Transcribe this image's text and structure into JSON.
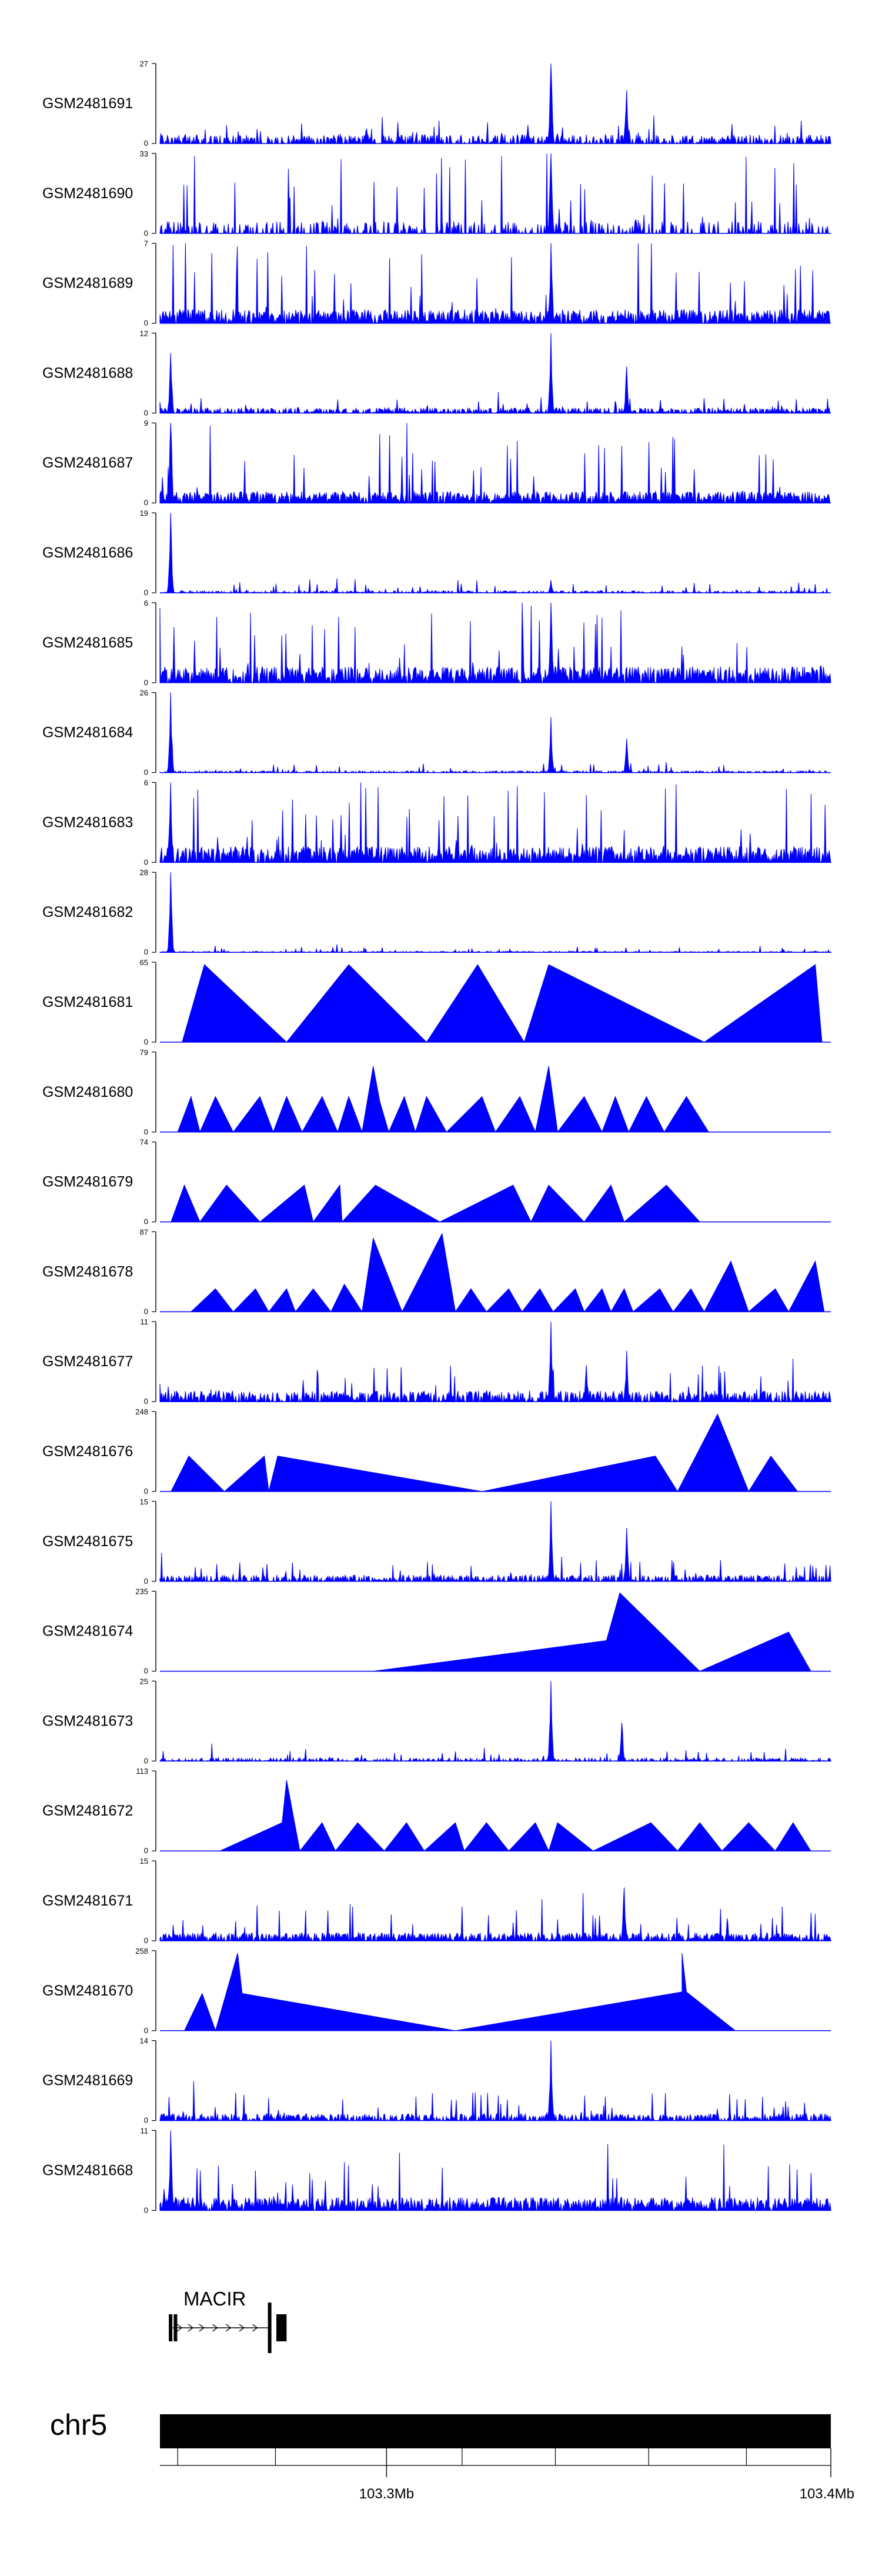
{
  "chart_data": {
    "type": "area",
    "title": "",
    "chrom": "chr5",
    "xlabel": "",
    "ylabel": "",
    "xlim": [
      103.249,
      103.4
    ],
    "x_ticks": [
      {
        "pos": 103.3,
        "label": "103.3Mb"
      },
      {
        "pos": 103.4,
        "label": "103.4Mb"
      }
    ],
    "minor_ticks": [
      103.253,
      103.275,
      103.317,
      103.338,
      103.359,
      103.381
    ],
    "color": "#0000FF",
    "tracks": [
      {
        "name": "GSM2481691",
        "ymax": 27,
        "ymin": 0,
        "style": "dense",
        "base": 3,
        "density": 0.55,
        "spike": 8,
        "peaks": [
          {
            "x": 103.337,
            "h": 27
          },
          {
            "x": 103.354,
            "h": 18
          },
          {
            "x": 103.2955,
            "h": 5
          }
        ]
      },
      {
        "name": "GSM2481690",
        "ymax": 33,
        "ymin": 0,
        "style": "dense",
        "base": 5,
        "density": 0.35,
        "spike": 33,
        "peaks": [
          {
            "x": 103.337,
            "h": 33
          },
          {
            "x": 103.337,
            "h": 33
          }
        ]
      },
      {
        "name": "GSM2481689",
        "ymax": 7,
        "ymin": 0,
        "style": "dense",
        "base": 1.2,
        "density": 0.8,
        "spike": 7,
        "peaks": [
          {
            "x": 103.337,
            "h": 7
          }
        ]
      },
      {
        "name": "GSM2481688",
        "ymax": 12,
        "ymin": 0,
        "style": "dense",
        "base": 0.8,
        "density": 0.6,
        "spike": 3,
        "peaks": [
          {
            "x": 103.2515,
            "h": 9
          },
          {
            "x": 103.337,
            "h": 12
          },
          {
            "x": 103.354,
            "h": 7
          }
        ]
      },
      {
        "name": "GSM2481687",
        "ymax": 9,
        "ymin": 0,
        "style": "dense",
        "base": 1.3,
        "density": 0.8,
        "spike": 8,
        "peaks": [
          {
            "x": 103.2515,
            "h": 9
          }
        ]
      },
      {
        "name": "GSM2481686",
        "ymax": 19,
        "ymin": 0,
        "style": "dense",
        "base": 0.5,
        "density": 0.5,
        "spike": 2.5,
        "peaks": [
          {
            "x": 103.2515,
            "h": 19
          },
          {
            "x": 103.337,
            "h": 3
          }
        ]
      },
      {
        "name": "GSM2481685",
        "ymax": 6,
        "ymin": 0,
        "style": "dense",
        "base": 1.2,
        "density": 0.8,
        "spike": 6,
        "peaks": [
          {
            "x": 103.337,
            "h": 6
          }
        ]
      },
      {
        "name": "GSM2481684",
        "ymax": 26,
        "ymin": 0,
        "style": "dense",
        "base": 0.6,
        "density": 0.5,
        "spike": 3,
        "peaks": [
          {
            "x": 103.2515,
            "h": 26
          },
          {
            "x": 103.337,
            "h": 18
          },
          {
            "x": 103.354,
            "h": 11
          }
        ]
      },
      {
        "name": "GSM2481683",
        "ymax": 6,
        "ymin": 0,
        "style": "dense",
        "base": 1.2,
        "density": 0.8,
        "spike": 6,
        "peaks": [
          {
            "x": 103.2515,
            "h": 6
          }
        ]
      },
      {
        "name": "GSM2481682",
        "ymax": 28,
        "ymin": 0,
        "style": "dense",
        "base": 0.4,
        "density": 0.45,
        "spike": 2,
        "peaks": [
          {
            "x": 103.2515,
            "h": 28
          }
        ]
      },
      {
        "name": "GSM2481681",
        "ymax": 65,
        "ymin": 0,
        "style": "tri",
        "points": [
          [
            103.254,
            0
          ],
          [
            103.259,
            63
          ],
          [
            103.2775,
            0
          ],
          [
            103.2915,
            63
          ],
          [
            103.309,
            0
          ],
          [
            103.3205,
            63
          ],
          [
            103.331,
            0
          ],
          [
            103.3365,
            63
          ],
          [
            103.3715,
            0
          ],
          [
            103.3965,
            63
          ],
          [
            103.398,
            0
          ]
        ]
      },
      {
        "name": "GSM2481680",
        "ymax": 79,
        "ymin": 0,
        "style": "tri",
        "points": [
          [
            103.253,
            0
          ],
          [
            103.256,
            35
          ],
          [
            103.258,
            0
          ],
          [
            103.2615,
            35
          ],
          [
            103.2655,
            0
          ],
          [
            103.2715,
            35
          ],
          [
            103.2745,
            0
          ],
          [
            103.2775,
            35
          ],
          [
            103.281,
            0
          ],
          [
            103.2855,
            35
          ],
          [
            103.289,
            0
          ],
          [
            103.2915,
            35
          ],
          [
            103.2945,
            0
          ],
          [
            103.297,
            65
          ],
          [
            103.2985,
            30
          ],
          [
            103.3005,
            0
          ],
          [
            103.304,
            35
          ],
          [
            103.3065,
            0
          ],
          [
            103.309,
            35
          ],
          [
            103.3135,
            0
          ],
          [
            103.3215,
            35
          ],
          [
            103.3245,
            0
          ],
          [
            103.33,
            35
          ],
          [
            103.3335,
            0
          ],
          [
            103.3365,
            65
          ],
          [
            103.3385,
            0
          ],
          [
            103.3445,
            35
          ],
          [
            103.3485,
            0
          ],
          [
            103.3515,
            35
          ],
          [
            103.3545,
            0
          ],
          [
            103.3585,
            35
          ],
          [
            103.3625,
            0
          ],
          [
            103.3675,
            35
          ],
          [
            103.3725,
            0
          ]
        ]
      },
      {
        "name": "GSM2481679",
        "ymax": 74,
        "ymin": 0,
        "style": "tri",
        "points": [
          [
            103.2515,
            0
          ],
          [
            103.2545,
            34
          ],
          [
            103.258,
            0
          ],
          [
            103.264,
            34
          ],
          [
            103.2715,
            0
          ],
          [
            103.2815,
            34
          ],
          [
            103.2835,
            0
          ],
          [
            103.2895,
            34
          ],
          [
            103.29,
            0
          ],
          [
            103.2975,
            34
          ],
          [
            103.312,
            0
          ],
          [
            103.3285,
            34
          ],
          [
            103.3325,
            0
          ],
          [
            103.3365,
            34
          ],
          [
            103.3445,
            0
          ],
          [
            103.3505,
            34
          ],
          [
            103.3535,
            0
          ],
          [
            103.363,
            34
          ],
          [
            103.3705,
            0
          ]
        ]
      },
      {
        "name": "GSM2481678",
        "ymax": 87,
        "ymin": 0,
        "style": "tri",
        "points": [
          [
            103.256,
            0
          ],
          [
            103.2615,
            25
          ],
          [
            103.2655,
            0
          ],
          [
            103.2705,
            25
          ],
          [
            103.2735,
            0
          ],
          [
            103.2775,
            25
          ],
          [
            103.2795,
            0
          ],
          [
            103.2835,
            25
          ],
          [
            103.2875,
            0
          ],
          [
            103.2905,
            30
          ],
          [
            103.2945,
            0
          ],
          [
            103.297,
            80
          ],
          [
            103.3035,
            0
          ],
          [
            103.3125,
            85
          ],
          [
            103.3155,
            0
          ],
          [
            103.319,
            25
          ],
          [
            103.3225,
            0
          ],
          [
            103.3275,
            25
          ],
          [
            103.3305,
            0
          ],
          [
            103.3345,
            25
          ],
          [
            103.3375,
            0
          ],
          [
            103.3425,
            25
          ],
          [
            103.3445,
            0
          ],
          [
            103.3485,
            25
          ],
          [
            103.3505,
            0
          ],
          [
            103.3535,
            25
          ],
          [
            103.3555,
            0
          ],
          [
            103.3615,
            25
          ],
          [
            103.3645,
            0
          ],
          [
            103.3685,
            25
          ],
          [
            103.3715,
            0
          ],
          [
            103.3775,
            55
          ],
          [
            103.3815,
            0
          ],
          [
            103.3875,
            25
          ],
          [
            103.3905,
            0
          ],
          [
            103.3965,
            55
          ],
          [
            103.3985,
            0
          ]
        ]
      },
      {
        "name": "GSM2481677",
        "ymax": 11,
        "ymin": 0,
        "style": "dense",
        "base": 1.5,
        "density": 0.7,
        "spike": 5,
        "peaks": [
          {
            "x": 103.337,
            "h": 11
          },
          {
            "x": 103.354,
            "h": 7
          },
          {
            "x": 103.345,
            "h": 5
          }
        ]
      },
      {
        "name": "GSM2481676",
        "ymax": 248,
        "ymin": 0,
        "style": "tri",
        "points": [
          [
            103.2515,
            0
          ],
          [
            103.2555,
            110
          ],
          [
            103.2635,
            0
          ],
          [
            103.2725,
            110
          ],
          [
            103.2735,
            0
          ],
          [
            103.2755,
            110
          ],
          [
            103.3215,
            0
          ],
          [
            103.3605,
            110
          ],
          [
            103.3655,
            0
          ],
          [
            103.3745,
            240
          ],
          [
            103.3815,
            0
          ],
          [
            103.3865,
            110
          ],
          [
            103.3925,
            0
          ]
        ]
      },
      {
        "name": "GSM2481675",
        "ymax": 15,
        "ymin": 0,
        "style": "dense",
        "base": 1.2,
        "density": 0.6,
        "spike": 4,
        "peaks": [
          {
            "x": 103.337,
            "h": 15
          },
          {
            "x": 103.354,
            "h": 10
          }
        ]
      },
      {
        "name": "GSM2481674",
        "ymax": 235,
        "ymin": 0,
        "style": "tri",
        "points": [
          [
            103.297,
            0
          ],
          [
            103.3495,
            90
          ],
          [
            103.3525,
            230
          ],
          [
            103.3705,
            0
          ],
          [
            103.3905,
            115
          ],
          [
            103.3955,
            0
          ]
        ]
      },
      {
        "name": "GSM2481673",
        "ymax": 25,
        "ymin": 0,
        "style": "dense",
        "base": 1,
        "density": 0.45,
        "spike": 4,
        "peaks": [
          {
            "x": 103.337,
            "h": 25
          },
          {
            "x": 103.353,
            "h": 12
          }
        ]
      },
      {
        "name": "GSM2481672",
        "ymax": 113,
        "ymin": 0,
        "style": "tri",
        "points": [
          [
            103.2625,
            0
          ],
          [
            103.2765,
            40
          ],
          [
            103.2775,
            100
          ],
          [
            103.2805,
            0
          ],
          [
            103.2855,
            40
          ],
          [
            103.2885,
            0
          ],
          [
            103.2935,
            40
          ],
          [
            103.2995,
            0
          ],
          [
            103.3045,
            40
          ],
          [
            103.3085,
            0
          ],
          [
            103.3155,
            40
          ],
          [
            103.3175,
            0
          ],
          [
            103.3225,
            40
          ],
          [
            103.3275,
            0
          ],
          [
            103.3335,
            40
          ],
          [
            103.3365,
            0
          ],
          [
            103.3385,
            40
          ],
          [
            103.3465,
            0
          ],
          [
            103.3595,
            40
          ],
          [
            103.3655,
            0
          ],
          [
            103.3705,
            40
          ],
          [
            103.3755,
            0
          ],
          [
            103.3815,
            40
          ],
          [
            103.3875,
            0
          ],
          [
            103.3915,
            40
          ],
          [
            103.3955,
            0
          ]
        ]
      },
      {
        "name": "GSM2481671",
        "ymax": 15,
        "ymin": 0,
        "style": "dense",
        "base": 1.5,
        "density": 0.75,
        "spike": 7,
        "peaks": [
          {
            "x": 103.3535,
            "h": 10
          }
        ]
      },
      {
        "name": "GSM2481670",
        "ymax": 258,
        "ymin": 0,
        "style": "tri",
        "points": [
          [
            103.2545,
            0
          ],
          [
            103.2585,
            120
          ],
          [
            103.2615,
            0
          ],
          [
            103.2665,
            250
          ],
          [
            103.2675,
            120
          ],
          [
            103.3155,
            0
          ],
          [
            103.3665,
            125
          ],
          [
            103.3665,
            250
          ],
          [
            103.3675,
            125
          ],
          [
            103.3785,
            0
          ]
        ]
      },
      {
        "name": "GSM2481669",
        "ymax": 14,
        "ymin": 0,
        "style": "dense",
        "base": 1.2,
        "density": 0.6,
        "spike": 5,
        "peaks": [
          {
            "x": 103.337,
            "h": 14
          }
        ]
      },
      {
        "name": "GSM2481668",
        "ymax": 11,
        "ymin": 0,
        "style": "dense",
        "base": 1.8,
        "density": 0.8,
        "spike": 7,
        "peaks": [
          {
            "x": 103.2515,
            "h": 11
          }
        ]
      }
    ],
    "gene": {
      "name": "MACIR",
      "strand": "+",
      "start": 103.251,
      "end": 103.274,
      "exons": [
        [
          103.251,
          103.2513
        ],
        [
          103.2521,
          103.2524
        ],
        [
          103.2733,
          103.2737
        ],
        [
          103.2752,
          103.2775
        ]
      ]
    }
  }
}
